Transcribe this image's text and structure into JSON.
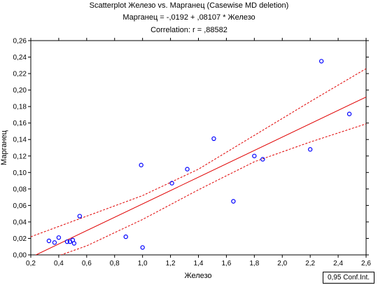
{
  "chart_data": {
    "type": "scatter",
    "title": "Scatterplot Железо    vs. Марганец (Casewise MD deletion)",
    "subtitle": "Марганец = -,0192 + ,08107 * Железо",
    "correlation": "Correlation: r = ,88582",
    "xlabel": "Железо",
    "ylabel": "Марганец",
    "xlim": [
      0.2,
      2.6
    ],
    "ylim": [
      0,
      0.26
    ],
    "xticks": [
      0.2,
      0.4,
      0.6,
      0.8,
      1.0,
      1.2,
      1.4,
      1.6,
      1.8,
      2.0,
      2.2,
      2.4,
      2.6
    ],
    "xtick_labels": [
      "0,2",
      "0,4",
      "0,6",
      "0,8",
      "1,0",
      "1,2",
      "1,4",
      "1,6",
      "1,8",
      "2,0",
      "2,2",
      "2,4",
      "2,6"
    ],
    "yticks": [
      0,
      0.02,
      0.04,
      0.06,
      0.08,
      0.1,
      0.12,
      0.14,
      0.16,
      0.18,
      0.2,
      0.22,
      0.24,
      0.26
    ],
    "ytick_labels": [
      "0,00",
      "0,02",
      "0,04",
      "0,06",
      "0,08",
      "0,10",
      "0,12",
      "0,14",
      "0,16",
      "0,18",
      "0,20",
      "0,22",
      "0,24",
      "0,26"
    ],
    "grid": false,
    "points": [
      {
        "x": 0.33,
        "y": 0.017
      },
      {
        "x": 0.37,
        "y": 0.015
      },
      {
        "x": 0.4,
        "y": 0.021
      },
      {
        "x": 0.46,
        "y": 0.016
      },
      {
        "x": 0.48,
        "y": 0.016
      },
      {
        "x": 0.5,
        "y": 0.018
      },
      {
        "x": 0.51,
        "y": 0.014
      },
      {
        "x": 0.55,
        "y": 0.047
      },
      {
        "x": 0.88,
        "y": 0.022
      },
      {
        "x": 0.99,
        "y": 0.109
      },
      {
        "x": 1.0,
        "y": 0.009
      },
      {
        "x": 1.21,
        "y": 0.087
      },
      {
        "x": 1.32,
        "y": 0.104
      },
      {
        "x": 1.51,
        "y": 0.141
      },
      {
        "x": 1.65,
        "y": 0.065
      },
      {
        "x": 1.8,
        "y": 0.12
      },
      {
        "x": 1.86,
        "y": 0.116
      },
      {
        "x": 2.2,
        "y": 0.128
      },
      {
        "x": 2.28,
        "y": 0.235
      },
      {
        "x": 2.48,
        "y": 0.171
      }
    ],
    "regression": {
      "intercept": -0.0192,
      "slope": 0.08107
    },
    "confidence_upper": [
      {
        "x": 0.2,
        "y": 0.022
      },
      {
        "x": 0.6,
        "y": 0.047
      },
      {
        "x": 1.0,
        "y": 0.072
      },
      {
        "x": 1.4,
        "y": 0.104
      },
      {
        "x": 1.8,
        "y": 0.145
      },
      {
        "x": 2.2,
        "y": 0.186
      },
      {
        "x": 2.6,
        "y": 0.226
      }
    ],
    "confidence_lower": [
      {
        "x": 0.2,
        "y": -0.013
      },
      {
        "x": 0.6,
        "y": 0.011
      },
      {
        "x": 1.0,
        "y": 0.043
      },
      {
        "x": 1.4,
        "y": 0.079
      },
      {
        "x": 1.8,
        "y": 0.113
      },
      {
        "x": 2.2,
        "y": 0.137
      },
      {
        "x": 2.6,
        "y": 0.159
      }
    ],
    "legend_text": "0,95 Conf.Int.",
    "colors": {
      "points": "#0000ff",
      "regression": "#e00000",
      "confidence": "#e00000"
    }
  }
}
